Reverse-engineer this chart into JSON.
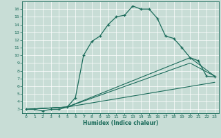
{
  "xlabel": "Humidex (Indice chaleur)",
  "bg_color": "#c8ddd6",
  "grid_color": "#ffffff",
  "line_color": "#1a6b5a",
  "xlim": [
    -0.5,
    23.5
  ],
  "ylim": [
    2.5,
    17.0
  ],
  "xticks": [
    0,
    1,
    2,
    3,
    4,
    5,
    6,
    7,
    8,
    9,
    10,
    11,
    12,
    13,
    14,
    15,
    16,
    17,
    18,
    19,
    20,
    21,
    22,
    23
  ],
  "yticks": [
    3,
    4,
    5,
    6,
    7,
    8,
    9,
    10,
    11,
    12,
    13,
    14,
    15,
    16
  ],
  "line1_x": [
    0,
    1,
    2,
    3,
    4,
    5,
    6,
    7,
    8,
    9,
    10,
    11,
    12,
    13,
    14,
    15,
    16,
    17,
    18,
    19,
    20,
    21,
    22,
    23
  ],
  "line1_y": [
    3.0,
    3.0,
    2.8,
    3.0,
    3.0,
    3.3,
    4.5,
    10.0,
    11.8,
    12.5,
    14.0,
    15.0,
    15.2,
    16.4,
    16.0,
    16.0,
    14.8,
    12.5,
    12.2,
    11.0,
    9.7,
    9.3,
    7.3,
    7.2
  ],
  "line2_x": [
    0,
    5,
    20,
    23
  ],
  "line2_y": [
    3.0,
    3.3,
    9.7,
    7.3
  ],
  "line3_x": [
    0,
    5,
    20,
    23
  ],
  "line3_y": [
    3.0,
    3.3,
    9.0,
    7.3
  ],
  "line4_x": [
    0,
    5,
    23
  ],
  "line4_y": [
    3.0,
    3.3,
    6.5
  ]
}
